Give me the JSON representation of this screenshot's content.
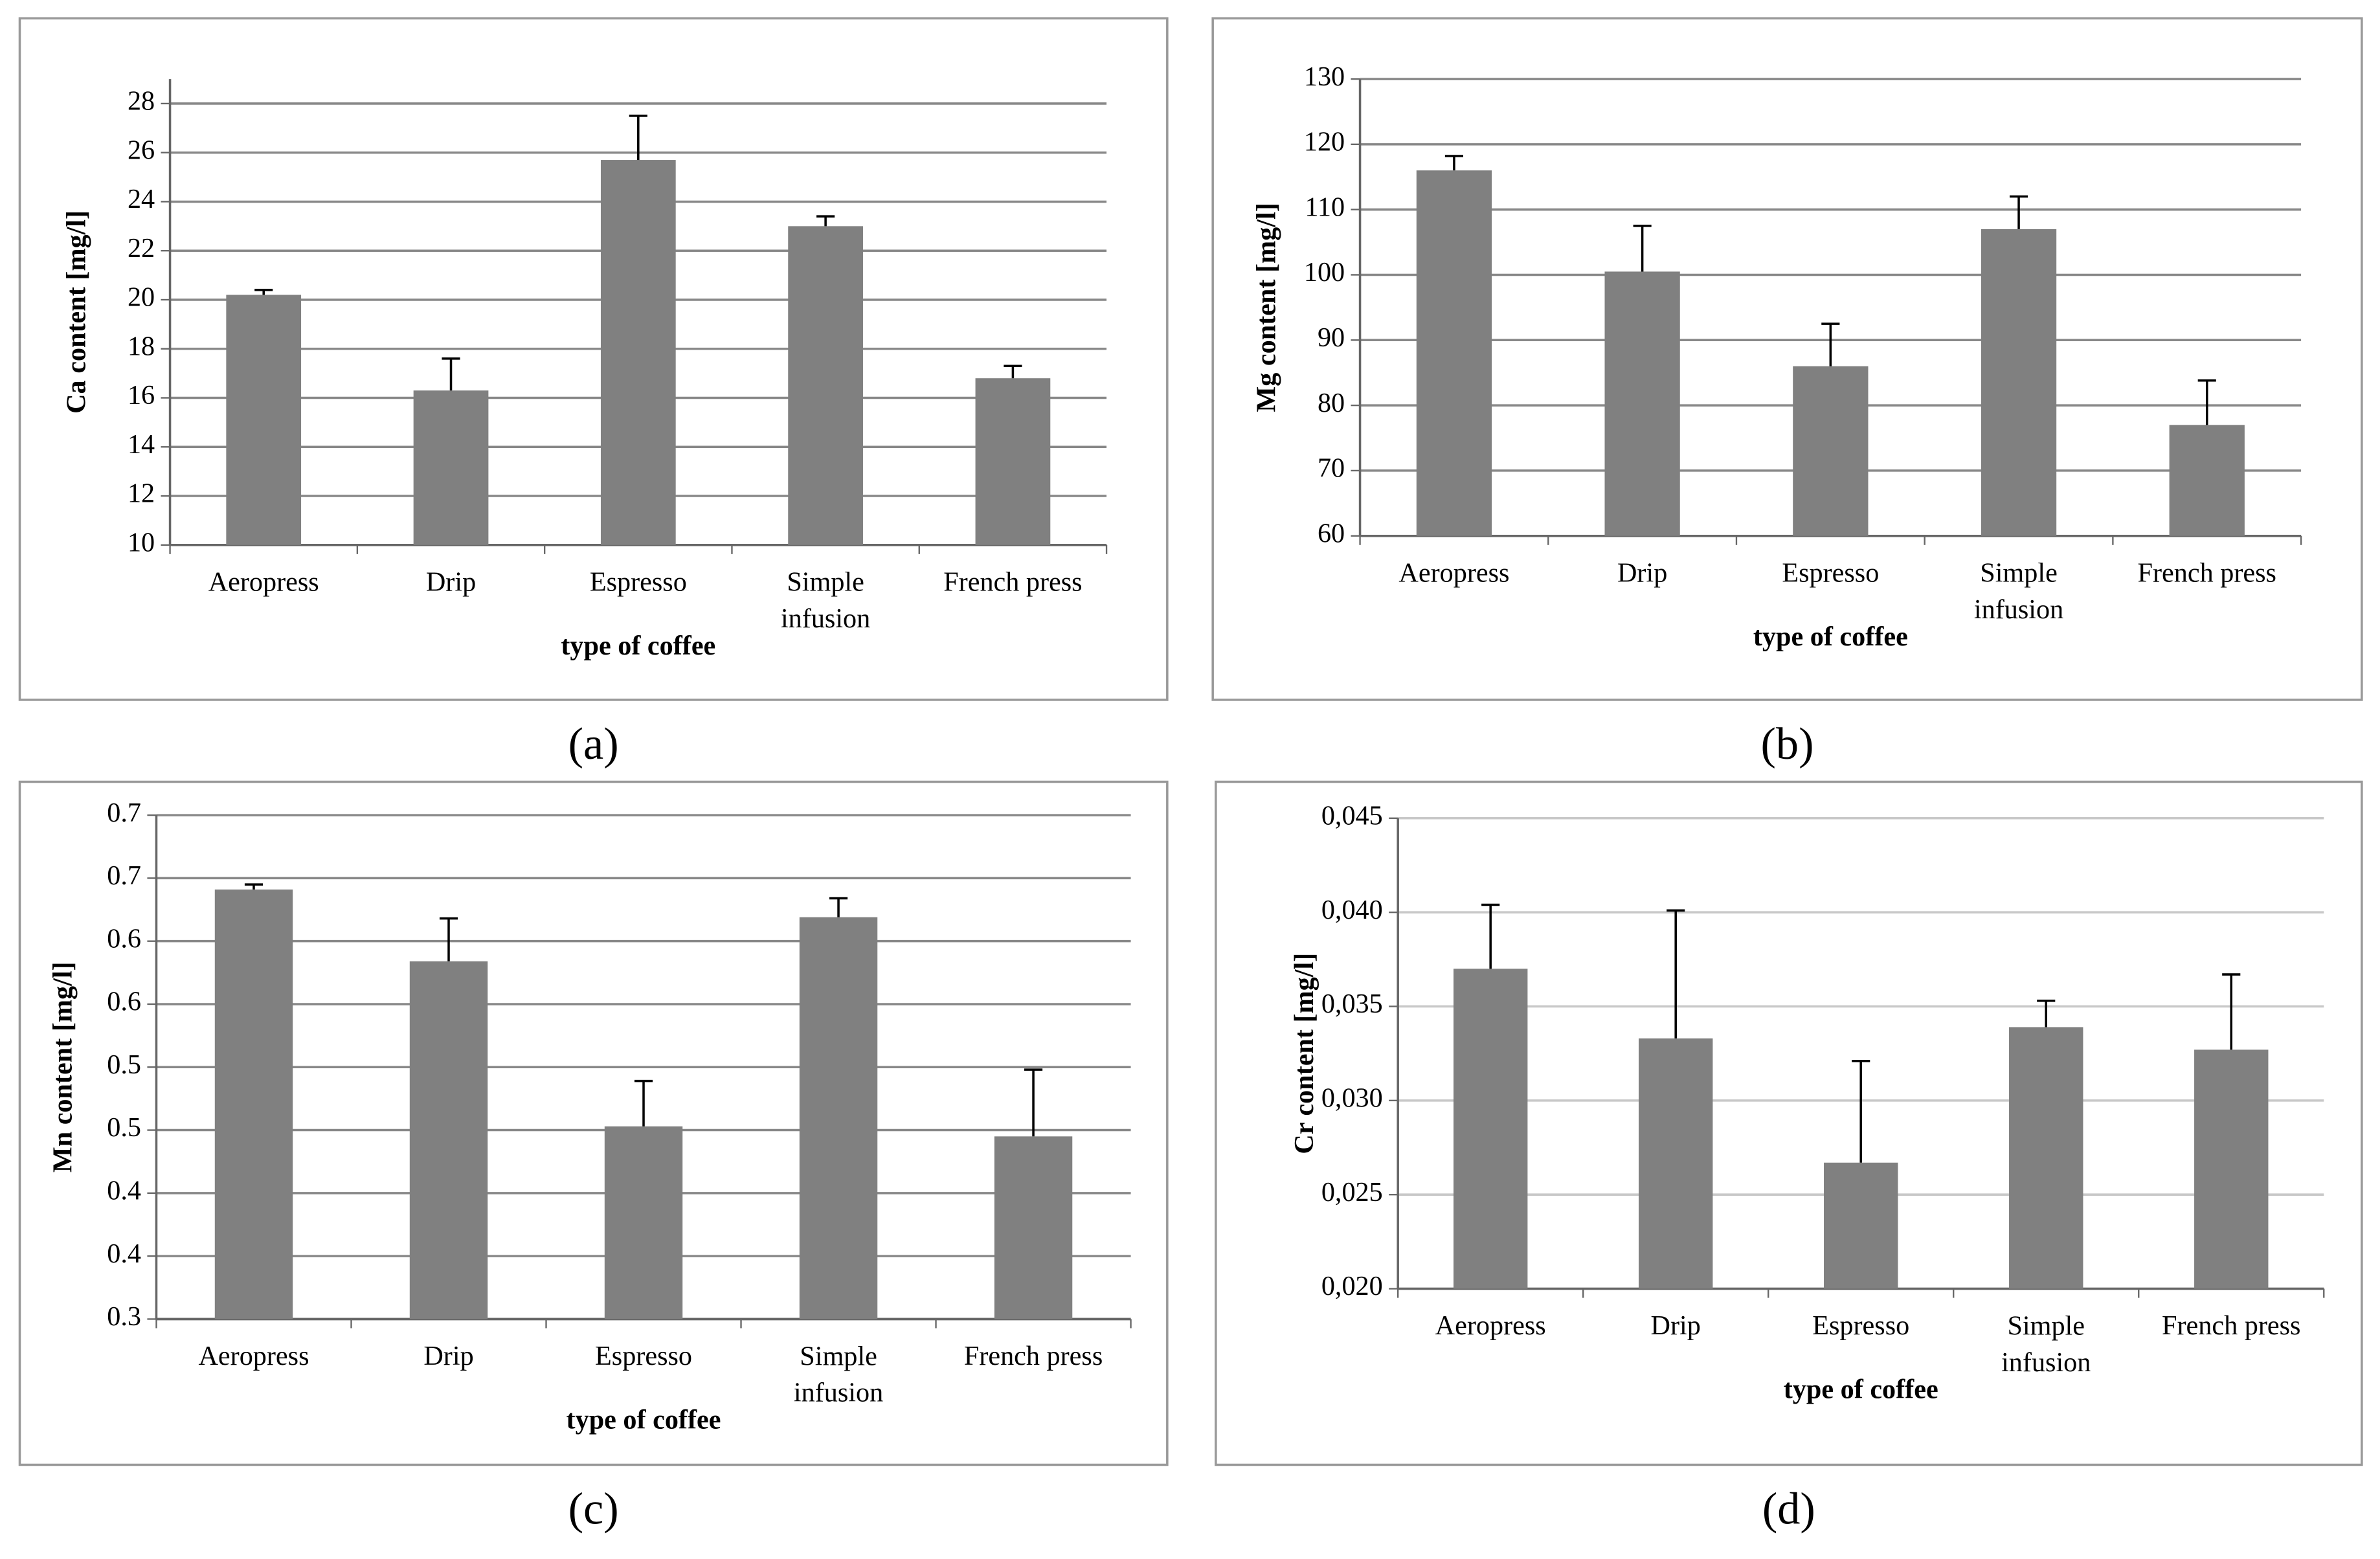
{
  "chart_data": [
    {
      "type": "bar",
      "panel_label": "(a)",
      "xlabel": "type of coffee",
      "ylabel": "Ca content [mg/l]",
      "categories": [
        "Aeropress",
        "Drip",
        "Espresso",
        "Simple infusion",
        "French press"
      ],
      "values": [
        20.2,
        16.3,
        25.7,
        23.0,
        16.8
      ],
      "errors": [
        0.2,
        1.3,
        1.8,
        0.4,
        0.5
      ],
      "color": "#808080",
      "ylim": [
        10,
        29
      ],
      "yticks": [
        10,
        12,
        14,
        16,
        18,
        20,
        22,
        24,
        26,
        28
      ],
      "grid": true
    },
    {
      "type": "bar",
      "panel_label": "(b)",
      "xlabel": "type of coffee",
      "ylabel": "Mg content [mg/l]",
      "categories": [
        "Aeropress",
        "Drip",
        "Espresso",
        "Simple infusion",
        "French press"
      ],
      "values": [
        116,
        100.5,
        86,
        107,
        77
      ],
      "errors": [
        2.2,
        7,
        6.5,
        5,
        6.8
      ],
      "color": "#808080",
      "ylim": [
        60,
        130
      ],
      "yticks": [
        60,
        70,
        80,
        90,
        100,
        110,
        120,
        130
      ],
      "grid": true
    },
    {
      "type": "bar",
      "panel_label": "(c)",
      "xlabel": "type of coffee",
      "ylabel": "Mn content [mg/l]",
      "categories": [
        "Aeropress",
        "Drip",
        "Espresso",
        "Simple infusion",
        "French press"
      ],
      "values": [
        0.641,
        0.584,
        0.453,
        0.619,
        0.445
      ],
      "errors": [
        0.004,
        0.034,
        0.036,
        0.015,
        0.053
      ],
      "color": "#808080",
      "ylim": [
        0.3,
        0.7
      ],
      "yticks": [
        0.3,
        {
          "value": 0.35,
          "label": "0.4"
        },
        0.4,
        {
          "value": 0.45,
          "label": "0.5"
        },
        0.5,
        {
          "value": 0.55,
          "label": "0.6"
        },
        0.6,
        {
          "value": 0.65,
          "label": "0.7"
        },
        0.7
      ],
      "grid": true
    },
    {
      "type": "bar",
      "panel_label": "(d)",
      "xlabel": "type of coffee",
      "ylabel": "Cr content [mg/l]",
      "categories": [
        "Aeropress",
        "Drip",
        "Espresso",
        "Simple infusion",
        "French press"
      ],
      "values": [
        0.037,
        0.0333,
        0.0267,
        0.0339,
        0.0327
      ],
      "errors": [
        0.0034,
        0.0068,
        0.0054,
        0.0014,
        0.004
      ],
      "color": "#808080",
      "ylim": [
        0.02,
        0.045
      ],
      "yticks": [
        {
          "value": 0.02,
          "label": "0,020"
        },
        {
          "value": 0.025,
          "label": "0,025"
        },
        {
          "value": 0.03,
          "label": "0,030"
        },
        {
          "value": 0.035,
          "label": "0,035"
        },
        {
          "value": 0.04,
          "label": "0,040"
        },
        {
          "value": 0.045,
          "label": "0,045"
        }
      ],
      "grid": true
    }
  ]
}
